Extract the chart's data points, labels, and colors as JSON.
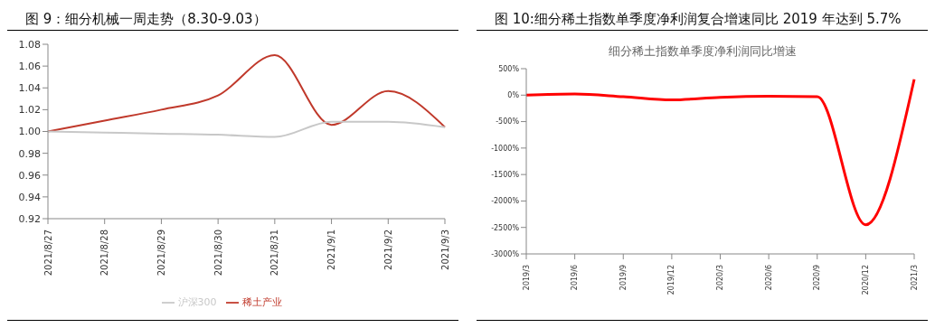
{
  "chart_data": [
    {
      "type": "line",
      "title": "图 9：细分机械一周走势（8.30-9.03）",
      "categories": [
        "2021/8/27",
        "2021/8/28",
        "2021/8/29",
        "2021/8/30",
        "2021/8/31",
        "2021/9/1",
        "2021/9/2",
        "2021/9/3"
      ],
      "series": [
        {
          "name": "稀土产业",
          "color": "#c0392b",
          "values": [
            1.0,
            1.01,
            1.02,
            1.033,
            1.07,
            1.006,
            1.037,
            1.004
          ]
        },
        {
          "name": "沪深300",
          "color": "#c8c8c8",
          "values": [
            1.0,
            0.999,
            0.998,
            0.997,
            0.995,
            1.009,
            1.009,
            1.004
          ]
        }
      ],
      "ylim": [
        0.92,
        1.08
      ],
      "yticks": [
        {
          "value": 0.92,
          "label": "0.92"
        },
        {
          "value": 0.94,
          "label": "0.94"
        },
        {
          "value": 0.96,
          "label": "0.96"
        },
        {
          "value": 0.98,
          "label": "0.98"
        },
        {
          "value": 1,
          "label": "1.00"
        },
        {
          "value": 1.02,
          "label": "1.02"
        },
        {
          "value": 1.04,
          "label": "1.04"
        },
        {
          "value": 1.06,
          "label": "1.06"
        },
        {
          "value": 1.08,
          "label": "1.08"
        }
      ],
      "grid": false,
      "legend": "bottom",
      "marker": "none",
      "line_style": "solid"
    },
    {
      "type": "line",
      "title": "图 10:细分稀土指数单季度净利润复合增速同比 2019 年达到 5.7%",
      "subtitle": "细分稀土指数单季度净利润同比增速",
      "categories": [
        "2019/3",
        "2019/6",
        "2019/9",
        "2019/12",
        "2020/3",
        "2020/6",
        "2020/9",
        "2020/12",
        "2021/3"
      ],
      "series": [
        {
          "color": "#ff0000",
          "values": [
            0,
            20,
            -30,
            -90,
            -40,
            -20,
            -30,
            -2450,
            300
          ]
        }
      ],
      "ylim": [
        -3000,
        500
      ],
      "yticks": [
        {
          "value": -3000,
          "label": "-3000%"
        },
        {
          "value": -2500,
          "label": "-2500%"
        },
        {
          "value": -2000,
          "label": "-2000%"
        },
        {
          "value": -1500,
          "label": "-1500%"
        },
        {
          "value": -1000,
          "label": "-1000%"
        },
        {
          "value": -500,
          "label": "-500%"
        },
        {
          "value": 0,
          "label": "0%"
        },
        {
          "value": 500,
          "label": "500%"
        }
      ],
      "grid": false,
      "legend": false,
      "marker": "none",
      "line_style": "solid"
    }
  ]
}
